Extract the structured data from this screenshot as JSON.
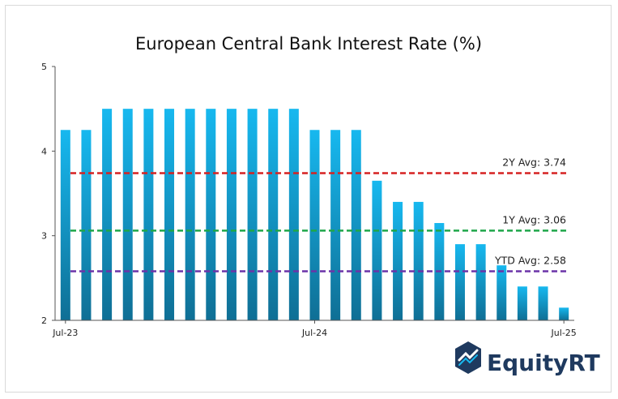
{
  "chart_data": {
    "type": "bar",
    "title": "European Central Bank Interest Rate (%)",
    "xlabel": "",
    "ylabel": "",
    "ylim": [
      2,
      5
    ],
    "yticks": [
      2,
      3,
      4,
      5
    ],
    "x_tick_labels": [
      "Jul-23",
      "Jul-24",
      "Jul-25"
    ],
    "x_tick_indices": [
      0,
      12,
      24
    ],
    "values": [
      4.25,
      4.25,
      4.5,
      4.5,
      4.5,
      4.5,
      4.5,
      4.5,
      4.5,
      4.5,
      4.5,
      4.5,
      4.25,
      4.25,
      4.25,
      3.65,
      3.4,
      3.4,
      3.15,
      2.9,
      2.9,
      2.65,
      2.4,
      2.4,
      2.15
    ],
    "grid": false,
    "legend": "none",
    "reference_lines": [
      {
        "label": "2Y Avg: 3.74",
        "value": 3.74,
        "color": "#d62222"
      },
      {
        "label": "1Y Avg: 3.06",
        "value": 3.06,
        "color": "#1fa64a"
      },
      {
        "label": "YTD Avg: 2.58",
        "value": 2.58,
        "color": "#6b34a8"
      }
    ],
    "bar_colors": {
      "top": "#17b8ef",
      "bottom": "#0f6f95"
    }
  },
  "brand": {
    "logo_text": "EquityRT",
    "color": "#1f3a5f"
  }
}
